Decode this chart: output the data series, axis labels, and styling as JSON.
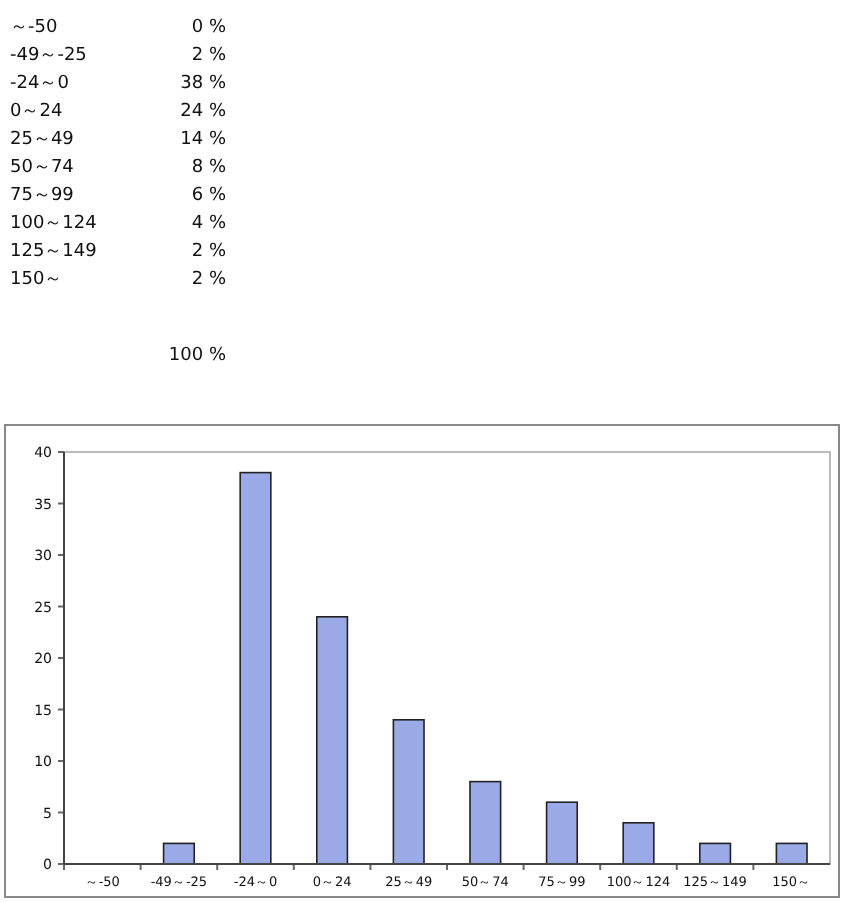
{
  "chart_data": {
    "type": "bar",
    "categories": [
      "～-50",
      "-49～-25",
      "-24～0",
      "0～24",
      "25～49",
      "50～74",
      "75～99",
      "100～124",
      "125～149",
      "150～"
    ],
    "values": [
      0,
      2,
      38,
      24,
      14,
      8,
      6,
      4,
      2,
      2
    ],
    "annotations": [
      "0 %",
      "2 %",
      "38 %",
      "24 %",
      "14 %",
      "8 %",
      "6 %",
      "4 %",
      "2 %",
      "2 %",
      "100 %"
    ],
    "color": "#9aaae6",
    "ylim": [
      0,
      40
    ],
    "yticks": [
      0,
      5,
      10,
      15,
      20,
      25,
      30,
      35,
      40
    ],
    "grid": false
  }
}
